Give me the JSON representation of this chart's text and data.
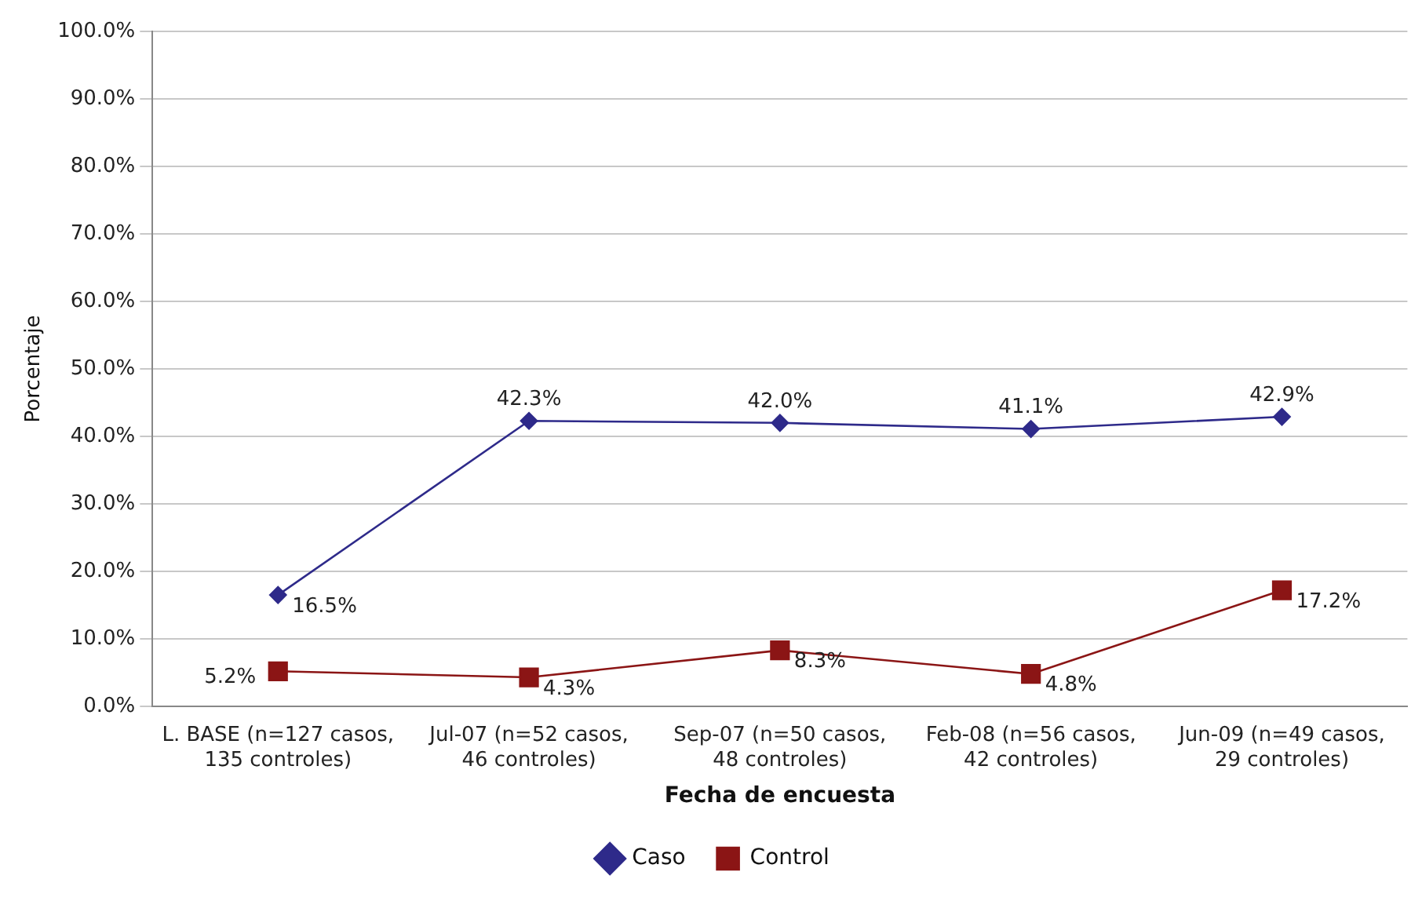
{
  "chart_data": {
    "type": "line",
    "xlabel": "Fecha de encuesta",
    "ylabel": "Porcentaje",
    "categories": [
      "L. BASE (n=127 casos, 135 controles)",
      "Jul-07 (n=52 casos, 46 controles)",
      "Sep-07 (n=50 casos, 48 controles)",
      "Feb-08 (n=56 casos, 42 controles)",
      "Jun-09 (n=49 casos, 29 controles)"
    ],
    "series": [
      {
        "name": "Caso",
        "color": "#2e2a8a",
        "marker": "diamond",
        "values": [
          16.5,
          42.3,
          42.0,
          41.1,
          42.9
        ],
        "value_labels": [
          "16.5%",
          "42.3%",
          "42.0%",
          "41.1%",
          "42.9%"
        ]
      },
      {
        "name": "Control",
        "color": "#8b1515",
        "marker": "square",
        "values": [
          5.2,
          4.3,
          8.3,
          4.8,
          17.2
        ],
        "value_labels": [
          "5.2%",
          "4.3%",
          "8.3%",
          "4.8%",
          "17.2%"
        ]
      }
    ],
    "ylim": [
      0,
      100
    ],
    "yticks": [
      {
        "value": 0,
        "label": "0.0%"
      },
      {
        "value": 10,
        "label": "10.0%"
      },
      {
        "value": 20,
        "label": "20.0%"
      },
      {
        "value": 30,
        "label": "30.0%"
      },
      {
        "value": 40,
        "label": "40.0%"
      },
      {
        "value": 50,
        "label": "50.0%"
      },
      {
        "value": 60,
        "label": "60.0%"
      },
      {
        "value": 70,
        "label": "70.0%"
      },
      {
        "value": 80,
        "label": "80.0%"
      },
      {
        "value": 90,
        "label": "90.0%"
      },
      {
        "value": 100,
        "label": "100.0%"
      }
    ],
    "grid": "y",
    "legend": "bottom",
    "line_style": "solid"
  }
}
